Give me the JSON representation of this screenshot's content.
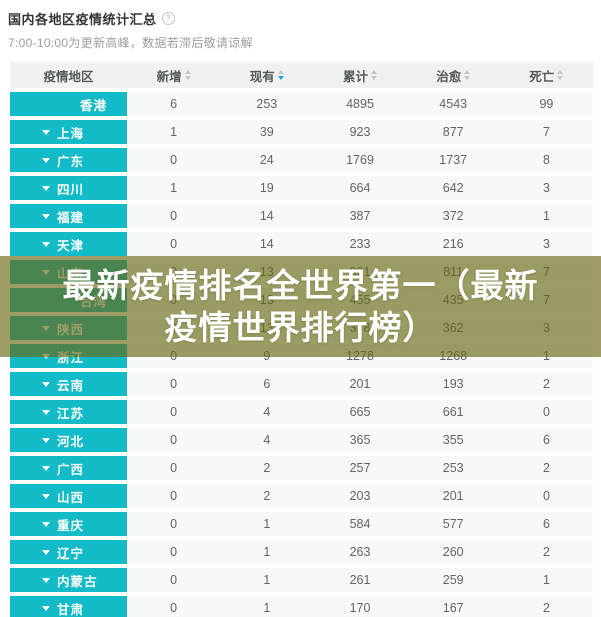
{
  "page": {
    "title": "国内各地区疫情统计汇总",
    "subtitle": "7:00-10:00为更新高峰，数据若滞后敬请谅解",
    "help_icon_glyph": "?"
  },
  "table": {
    "columns": [
      {
        "key": "region",
        "label": "疫情地区",
        "sortable": false,
        "sort": "none"
      },
      {
        "key": "new",
        "label": "新增",
        "sortable": true,
        "sort": "none"
      },
      {
        "key": "current",
        "label": "现有",
        "sortable": true,
        "sort": "desc"
      },
      {
        "key": "total",
        "label": "累计",
        "sortable": true,
        "sort": "none"
      },
      {
        "key": "cured",
        "label": "治愈",
        "sortable": true,
        "sort": "none"
      },
      {
        "key": "deaths",
        "label": "死亡",
        "sortable": true,
        "sort": "none"
      }
    ],
    "rows": [
      {
        "region": "香港",
        "expandable": false,
        "new": 6,
        "current": 253,
        "total": 4895,
        "cured": 4543,
        "deaths": 99
      },
      {
        "region": "上海",
        "expandable": true,
        "new": 1,
        "current": 39,
        "total": 923,
        "cured": 877,
        "deaths": 7
      },
      {
        "region": "广东",
        "expandable": true,
        "new": 0,
        "current": 24,
        "total": 1769,
        "cured": 1737,
        "deaths": 8
      },
      {
        "region": "四川",
        "expandable": true,
        "new": 1,
        "current": 19,
        "total": 664,
        "cured": 642,
        "deaths": 3
      },
      {
        "region": "福建",
        "expandable": true,
        "new": 0,
        "current": 14,
        "total": 387,
        "cured": 372,
        "deaths": 1
      },
      {
        "region": "天津",
        "expandable": true,
        "new": 0,
        "current": 14,
        "total": 233,
        "cured": 216,
        "deaths": 3
      },
      {
        "region": "山东",
        "expandable": true,
        "new": 0,
        "current": 13,
        "total": 831,
        "cured": 811,
        "deaths": 7
      },
      {
        "region": "台湾",
        "expandable": false,
        "new": 0,
        "current": 13,
        "total": 455,
        "cured": 435,
        "deaths": 7
      },
      {
        "region": "陕西",
        "expandable": true,
        "new": 0,
        "current": 13,
        "total": 378,
        "cured": 362,
        "deaths": 3
      },
      {
        "region": "浙江",
        "expandable": true,
        "new": 0,
        "current": 9,
        "total": 1278,
        "cured": 1268,
        "deaths": 1
      },
      {
        "region": "云南",
        "expandable": true,
        "new": 0,
        "current": 6,
        "total": 201,
        "cured": 193,
        "deaths": 2
      },
      {
        "region": "江苏",
        "expandable": true,
        "new": 0,
        "current": 4,
        "total": 665,
        "cured": 661,
        "deaths": 0
      },
      {
        "region": "河北",
        "expandable": true,
        "new": 0,
        "current": 4,
        "total": 365,
        "cured": 355,
        "deaths": 6
      },
      {
        "region": "广西",
        "expandable": true,
        "new": 0,
        "current": 2,
        "total": 257,
        "cured": 253,
        "deaths": 2
      },
      {
        "region": "山西",
        "expandable": true,
        "new": 0,
        "current": 2,
        "total": 203,
        "cured": 201,
        "deaths": 0
      },
      {
        "region": "重庆",
        "expandable": true,
        "new": 0,
        "current": 1,
        "total": 584,
        "cured": 577,
        "deaths": 6
      },
      {
        "region": "辽宁",
        "expandable": true,
        "new": 0,
        "current": 1,
        "total": 263,
        "cured": 260,
        "deaths": 2
      },
      {
        "region": "内蒙古",
        "expandable": true,
        "new": 0,
        "current": 1,
        "total": 261,
        "cured": 259,
        "deaths": 1
      },
      {
        "region": "甘肃",
        "expandable": true,
        "new": 0,
        "current": 1,
        "total": 170,
        "cured": 167,
        "deaths": 2
      }
    ]
  },
  "overlay": {
    "line1": "最新疫情排名全世界第一（最新",
    "line2": "疫情世界排行榜）"
  },
  "colors": {
    "region_cell": "#13bac7",
    "row_background": "#f7f8f9",
    "header_background": "#eff1f2",
    "sort_active": "#21a3dd",
    "overlay_band": "rgba(105,105,18,0.65)",
    "overlay_text": "#ffffff"
  }
}
